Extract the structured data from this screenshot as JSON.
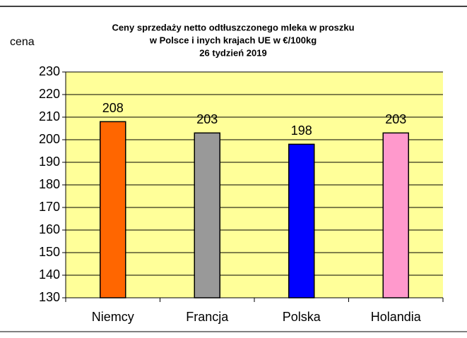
{
  "chart_data": {
    "type": "bar",
    "title": [
      "Ceny sprzedaży netto odtłuszczonego mleka w proszku",
      "w Polsce i inych  krajach UE w €/100kg",
      "26  tydzień 2019"
    ],
    "ylabel": "cena",
    "categories": [
      "Niemcy",
      "Francja",
      "Polska",
      "Holandia"
    ],
    "values": [
      208,
      203,
      198,
      203
    ],
    "colors": [
      "#ff6600",
      "#999999",
      "#0000ff",
      "#ff99cc"
    ],
    "ylim": [
      130,
      230
    ],
    "yticks": [
      130,
      140,
      150,
      160,
      170,
      180,
      190,
      200,
      210,
      220,
      230
    ],
    "grid": true,
    "background": "#ffff99"
  }
}
